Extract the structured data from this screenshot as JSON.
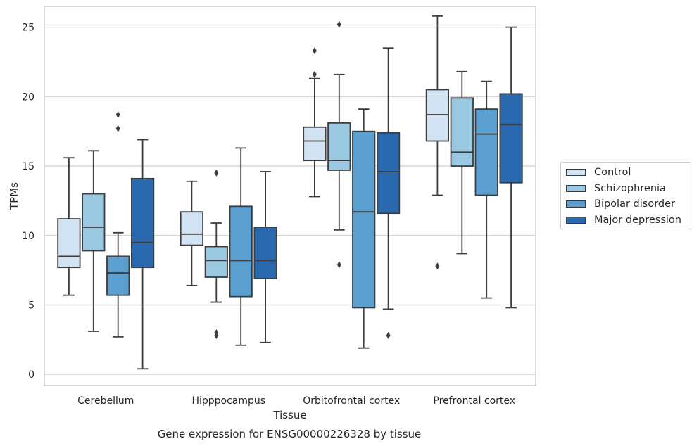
{
  "chart_data": {
    "type": "box",
    "title": "",
    "caption": "Gene expression for ENSG00000226328 by tissue",
    "xlabel": "Tissue",
    "ylabel": "TPMs",
    "ylim": [
      -0.8,
      26.5
    ],
    "yticks": [
      0,
      5,
      10,
      15,
      20,
      25
    ],
    "grid": true,
    "legend_position": "right",
    "categories": [
      "Cerebellum",
      "Hipppocampus",
      "Orbitofrontal cortex",
      "Prefrontal cortex"
    ],
    "series": [
      {
        "name": "Control",
        "color": "#d2e3f3",
        "boxes": [
          {
            "whislo": 5.7,
            "q1": 7.7,
            "med": 8.5,
            "q3": 11.2,
            "whishi": 15.6,
            "fliers": []
          },
          {
            "whislo": 6.4,
            "q1": 9.3,
            "med": 10.1,
            "q3": 11.7,
            "whishi": 13.9,
            "fliers": []
          },
          {
            "whislo": 12.8,
            "q1": 15.4,
            "med": 16.8,
            "q3": 17.8,
            "whishi": 21.3,
            "fliers": [
              21.6,
              23.3
            ]
          },
          {
            "whislo": 12.9,
            "q1": 16.8,
            "med": 18.7,
            "q3": 20.5,
            "whishi": 25.8,
            "fliers": [
              7.8
            ]
          }
        ]
      },
      {
        "name": "Schizophrenia",
        "color": "#9ac8e0",
        "boxes": [
          {
            "whislo": 3.1,
            "q1": 8.9,
            "med": 10.6,
            "q3": 13.0,
            "whishi": 16.1,
            "fliers": []
          },
          {
            "whislo": 5.2,
            "q1": 7.0,
            "med": 8.2,
            "q3": 9.2,
            "whishi": 10.9,
            "fliers": [
              14.5,
              2.8,
              3.0
            ]
          },
          {
            "whislo": 10.4,
            "q1": 14.7,
            "med": 15.4,
            "q3": 18.1,
            "whishi": 21.6,
            "fliers": [
              25.2,
              7.9
            ]
          },
          {
            "whislo": 8.7,
            "q1": 15.0,
            "med": 16.0,
            "q3": 19.9,
            "whishi": 21.8,
            "fliers": []
          }
        ]
      },
      {
        "name": "Bipolar disorder",
        "color": "#5a9fcf",
        "boxes": [
          {
            "whislo": 2.7,
            "q1": 5.7,
            "med": 7.3,
            "q3": 8.5,
            "whishi": 10.2,
            "fliers": [
              17.7,
              18.7
            ]
          },
          {
            "whislo": 2.1,
            "q1": 5.6,
            "med": 8.2,
            "q3": 12.1,
            "whishi": 16.3,
            "fliers": []
          },
          {
            "whislo": 1.9,
            "q1": 4.8,
            "med": 11.7,
            "q3": 17.5,
            "whishi": 19.1,
            "fliers": []
          },
          {
            "whislo": 5.5,
            "q1": 12.9,
            "med": 17.3,
            "q3": 19.1,
            "whishi": 21.1,
            "fliers": []
          }
        ]
      },
      {
        "name": "Major depression",
        "color": "#2a69ad",
        "boxes": [
          {
            "whislo": 0.4,
            "q1": 7.7,
            "med": 9.5,
            "q3": 14.1,
            "whishi": 16.9,
            "fliers": []
          },
          {
            "whislo": 2.3,
            "q1": 6.9,
            "med": 8.2,
            "q3": 10.6,
            "whishi": 14.6,
            "fliers": []
          },
          {
            "whislo": 4.7,
            "q1": 11.6,
            "med": 14.6,
            "q3": 17.4,
            "whishi": 23.5,
            "fliers": [
              2.8
            ]
          },
          {
            "whislo": 4.8,
            "q1": 13.8,
            "med": 18.0,
            "q3": 20.2,
            "whishi": 25.0,
            "fliers": []
          }
        ]
      }
    ]
  }
}
